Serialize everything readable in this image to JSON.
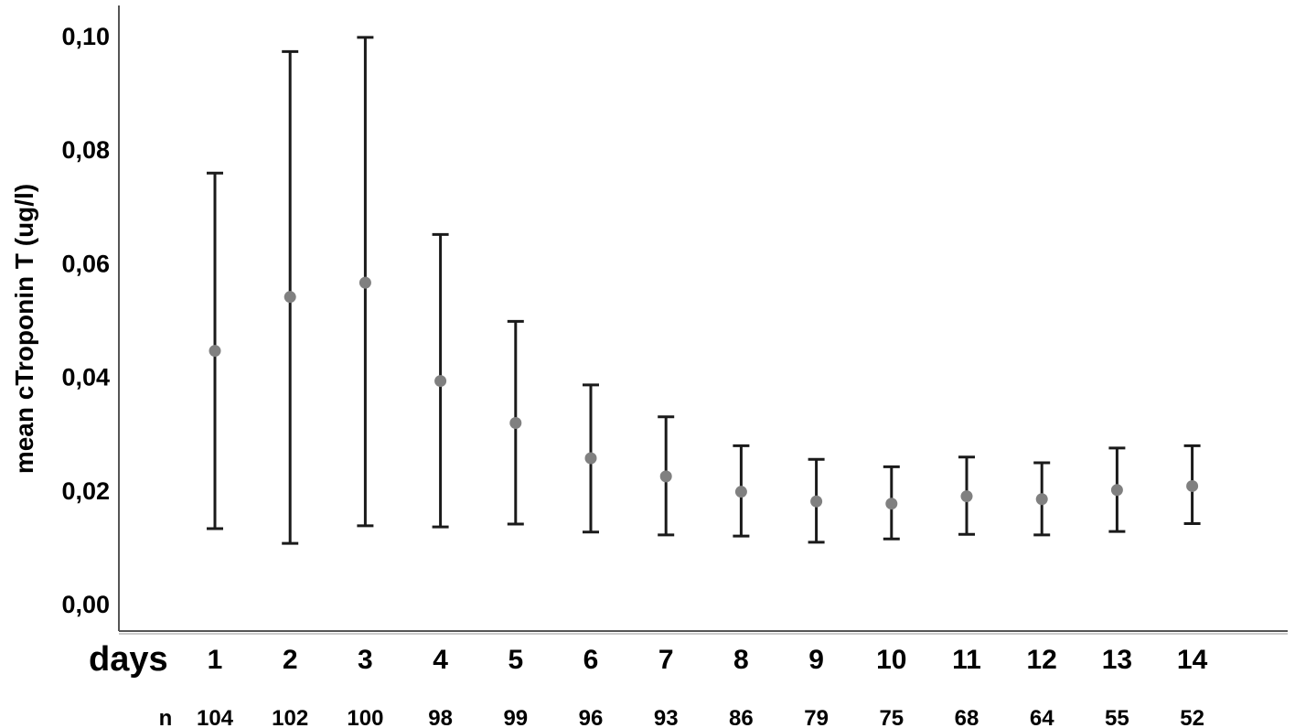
{
  "chart_data": {
    "type": "scatter",
    "xlabel": "days",
    "ylabel": "mean cTroponin T (ug/l)",
    "ylim": [
      0.0,
      0.1
    ],
    "y_ticks": [
      "0,00",
      "0,02",
      "0,04",
      "0,06",
      "0,08",
      "0,10"
    ],
    "y_tick_values": [
      0.0,
      0.02,
      0.04,
      0.06,
      0.08,
      0.1
    ],
    "categories": [
      "1",
      "2",
      "3",
      "4",
      "5",
      "6",
      "7",
      "8",
      "9",
      "10",
      "11",
      "12",
      "13",
      "14"
    ],
    "values": [
      0.0445,
      0.054,
      0.0565,
      0.0392,
      0.0318,
      0.0256,
      0.0224,
      0.0197,
      0.018,
      0.0176,
      0.0189,
      0.0184,
      0.02,
      0.0207
    ],
    "error_upper": [
      0.0758,
      0.0972,
      0.0997,
      0.065,
      0.0497,
      0.0385,
      0.0329,
      0.0278,
      0.0254,
      0.0241,
      0.0258,
      0.0248,
      0.0274,
      0.0278
    ],
    "error_lower": [
      0.0132,
      0.0106,
      0.0137,
      0.0135,
      0.014,
      0.0126,
      0.0121,
      0.0119,
      0.0108,
      0.0114,
      0.0122,
      0.0121,
      0.0127,
      0.0141
    ],
    "n_label": "n",
    "n_values": [
      "104",
      "102",
      "100",
      "98",
      "99",
      "96",
      "93",
      "86",
      "79",
      "75",
      "68",
      "64",
      "55",
      "52"
    ],
    "grid": false,
    "marker_color": "#808080",
    "errorbar_color": "#1a1a1a"
  }
}
